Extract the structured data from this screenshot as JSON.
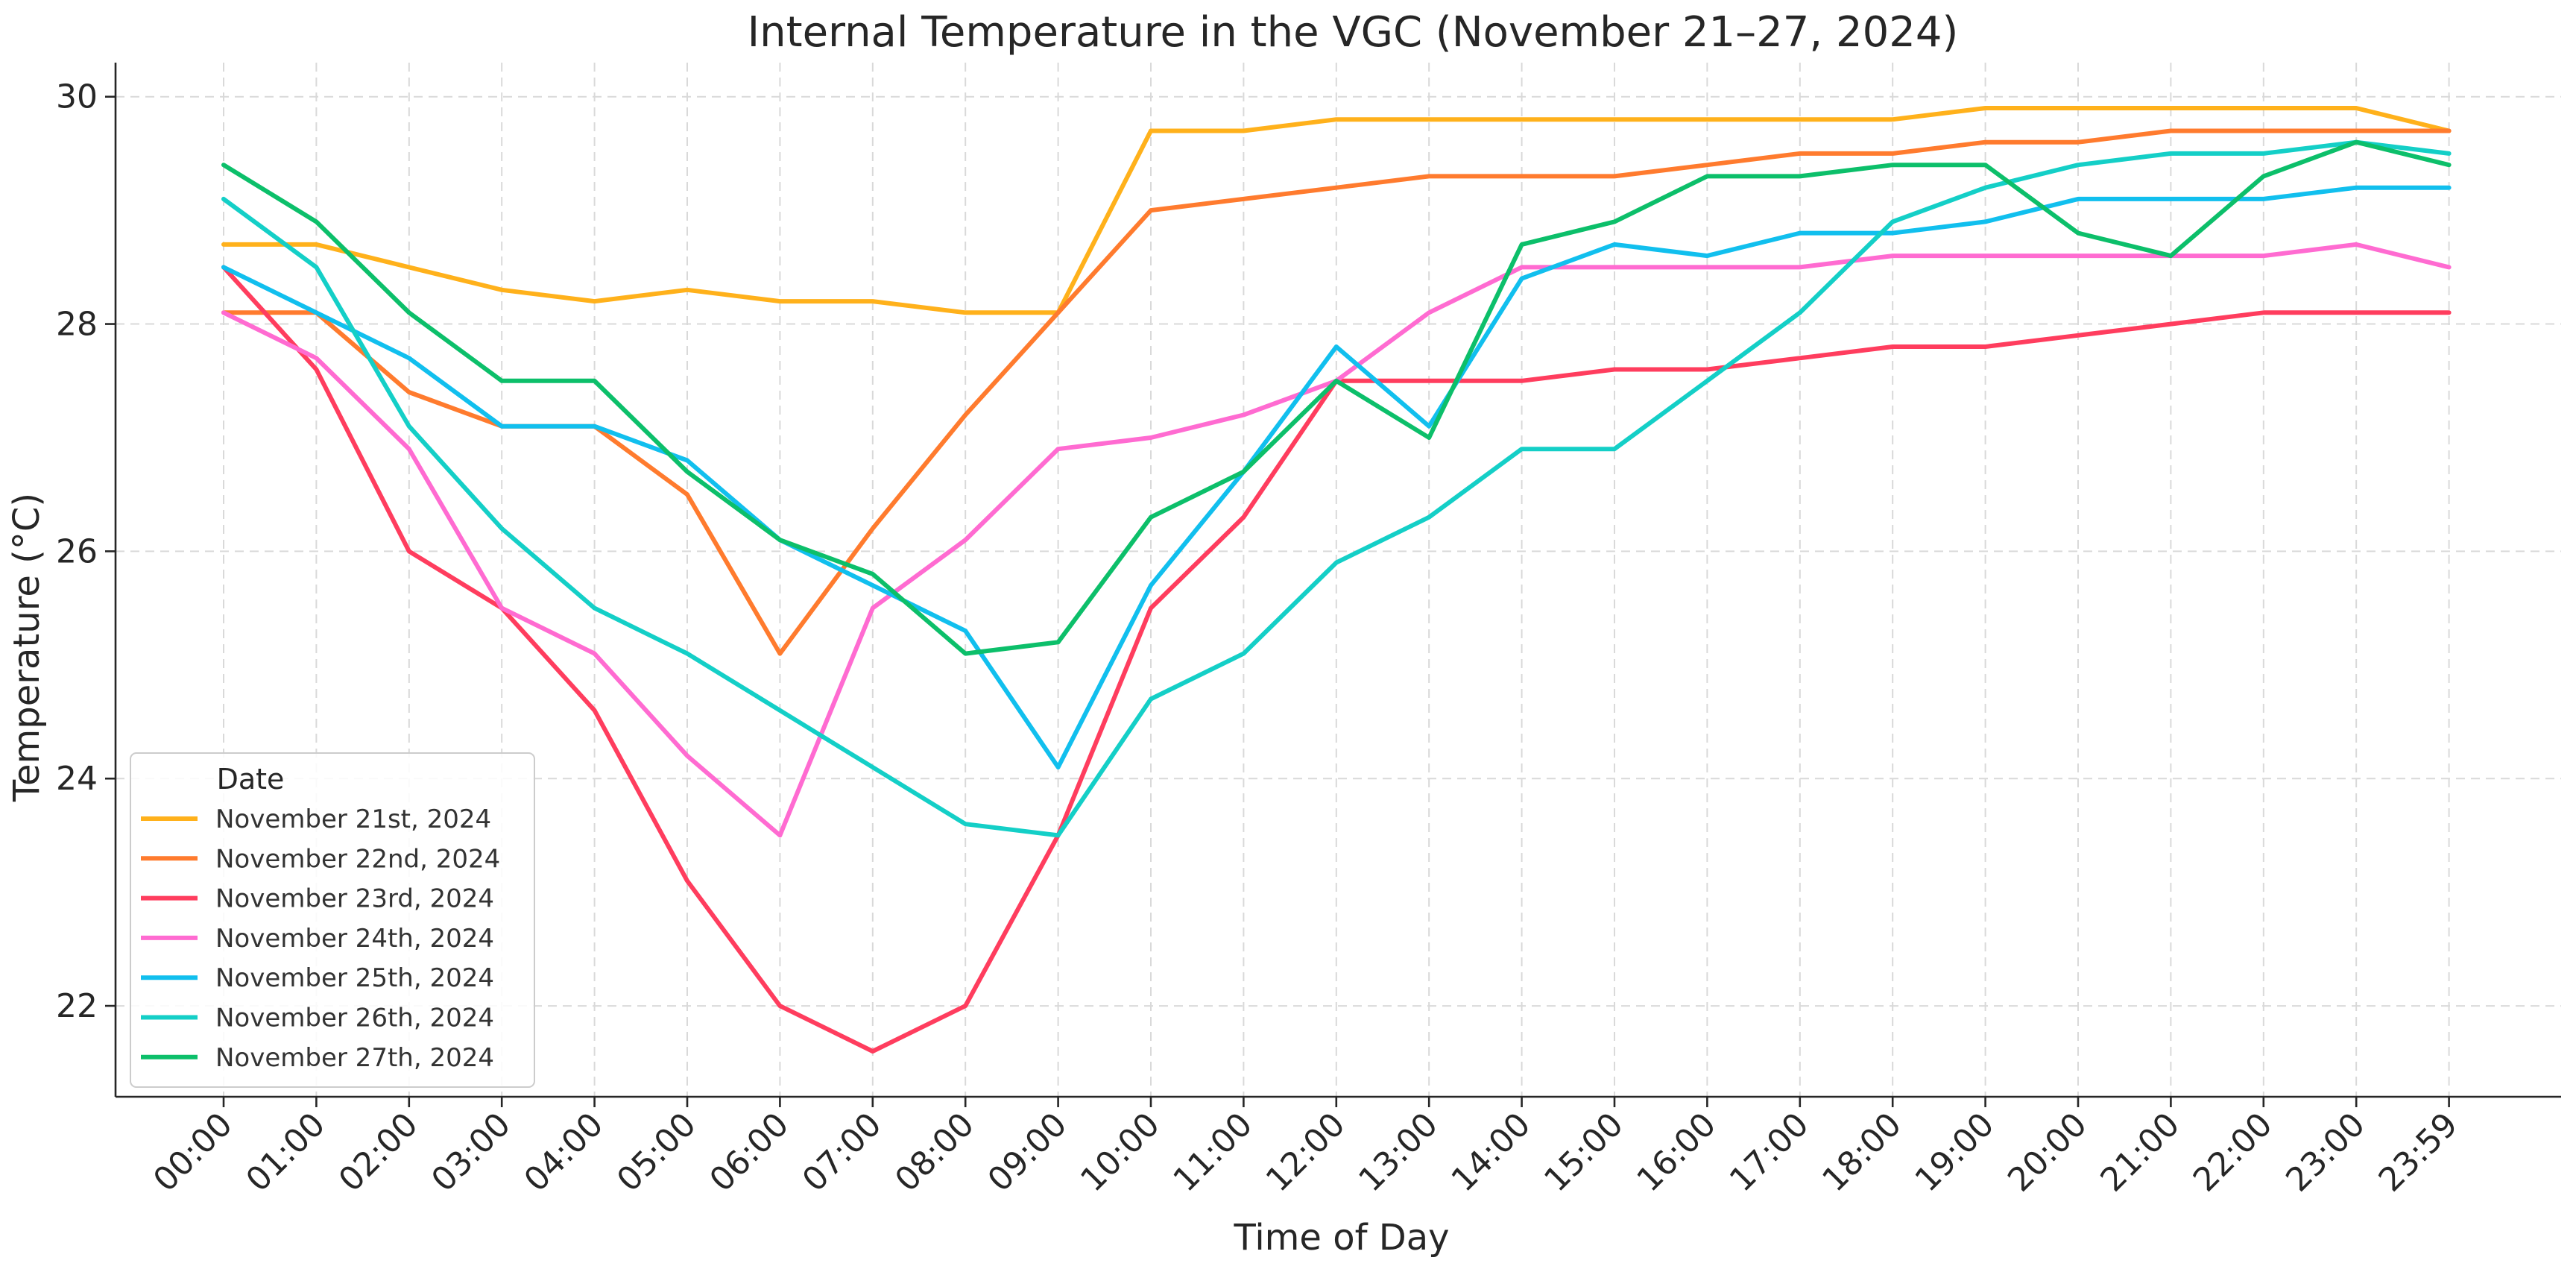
{
  "chart_data": {
    "type": "line",
    "title": "Internal Temperature in the VGC (November 21–27, 2024)",
    "xlabel": "Time of Day",
    "ylabel": "Temperature (°C)",
    "ylim": [
      21.2,
      30.3
    ],
    "yticks": [
      22,
      24,
      26,
      28,
      30
    ],
    "grid": true,
    "legend": {
      "title": "Date",
      "placement": "bottom-left"
    },
    "categories": [
      "00:00",
      "01:00",
      "02:00",
      "03:00",
      "04:00",
      "05:00",
      "06:00",
      "07:00",
      "08:00",
      "09:00",
      "10:00",
      "11:00",
      "12:00",
      "13:00",
      "14:00",
      "15:00",
      "16:00",
      "17:00",
      "18:00",
      "19:00",
      "20:00",
      "21:00",
      "22:00",
      "23:00",
      "23:59"
    ],
    "series": [
      {
        "name": "November 21st, 2024",
        "color": "#ffb11b",
        "values": [
          28.7,
          28.7,
          28.5,
          28.3,
          28.2,
          28.3,
          28.2,
          28.2,
          28.1,
          28.1,
          29.7,
          29.7,
          29.8,
          29.8,
          29.8,
          29.8,
          29.8,
          29.8,
          29.8,
          29.9,
          29.9,
          29.9,
          29.9,
          29.9,
          29.7
        ]
      },
      {
        "name": "November 22nd, 2024",
        "color": "#ff7b2e",
        "values": [
          28.1,
          28.1,
          27.4,
          27.1,
          27.1,
          26.5,
          25.1,
          26.2,
          27.2,
          28.1,
          29.0,
          29.1,
          29.2,
          29.3,
          29.3,
          29.3,
          29.4,
          29.5,
          29.5,
          29.6,
          29.6,
          29.7,
          29.7,
          29.7,
          29.7
        ]
      },
      {
        "name": "November 23rd, 2024",
        "color": "#ff3d5e",
        "values": [
          28.5,
          27.6,
          26.0,
          25.5,
          24.6,
          23.1,
          22.0,
          21.6,
          22.0,
          23.5,
          25.5,
          26.3,
          27.5,
          27.5,
          27.5,
          27.6,
          27.6,
          27.7,
          27.8,
          27.8,
          27.9,
          28.0,
          28.1,
          28.1,
          28.1
        ]
      },
      {
        "name": "November 24th, 2024",
        "color": "#ff6bd1",
        "values": [
          28.1,
          27.7,
          26.9,
          25.5,
          25.1,
          24.2,
          23.5,
          25.5,
          26.1,
          26.9,
          27.0,
          27.2,
          27.5,
          28.1,
          28.5,
          28.5,
          28.5,
          28.5,
          28.6,
          28.6,
          28.6,
          28.6,
          28.6,
          28.7,
          28.5
        ]
      },
      {
        "name": "November 25th, 2024",
        "color": "#11bfee",
        "values": [
          28.5,
          28.1,
          27.7,
          27.1,
          27.1,
          26.8,
          26.1,
          25.7,
          25.3,
          24.1,
          25.7,
          26.7,
          27.8,
          27.1,
          28.4,
          28.7,
          28.6,
          28.8,
          28.8,
          28.9,
          29.1,
          29.1,
          29.1,
          29.2,
          29.2
        ]
      },
      {
        "name": "November 26th, 2024",
        "color": "#14cfc7",
        "values": [
          29.1,
          28.5,
          27.1,
          26.2,
          25.5,
          25.1,
          24.6,
          24.1,
          23.6,
          23.5,
          24.7,
          25.1,
          25.9,
          26.3,
          26.9,
          26.9,
          27.5,
          28.1,
          28.9,
          29.2,
          29.4,
          29.5,
          29.5,
          29.6,
          29.5
        ]
      },
      {
        "name": "November 27th, 2024",
        "color": "#0cbf6a",
        "values": [
          29.4,
          28.9,
          28.1,
          27.5,
          27.5,
          26.7,
          26.1,
          25.8,
          25.1,
          25.2,
          26.3,
          26.7,
          27.5,
          27.0,
          28.7,
          28.9,
          29.3,
          29.3,
          29.4,
          29.4,
          28.8,
          28.6,
          29.3,
          29.6,
          29.4
        ]
      }
    ]
  }
}
